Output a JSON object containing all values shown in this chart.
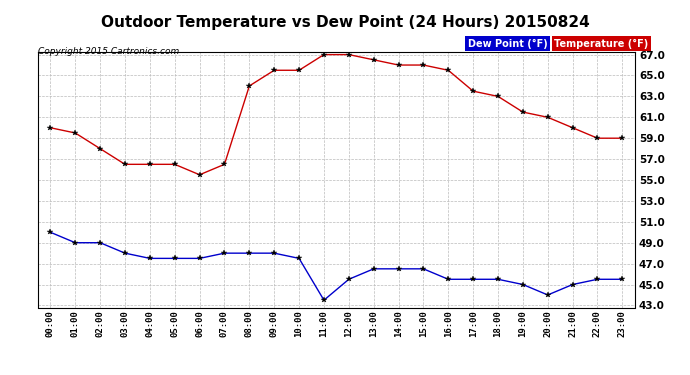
{
  "title": "Outdoor Temperature vs Dew Point (24 Hours) 20150824",
  "copyright": "Copyright 2015 Cartronics.com",
  "hours": [
    "00:00",
    "01:00",
    "02:00",
    "03:00",
    "04:00",
    "05:00",
    "06:00",
    "07:00",
    "08:00",
    "09:00",
    "10:00",
    "11:00",
    "12:00",
    "13:00",
    "14:00",
    "15:00",
    "16:00",
    "17:00",
    "18:00",
    "19:00",
    "20:00",
    "21:00",
    "22:00",
    "23:00"
  ],
  "temperature": [
    60.0,
    59.5,
    58.0,
    56.5,
    56.5,
    56.5,
    55.5,
    56.5,
    64.0,
    65.5,
    65.5,
    67.0,
    67.0,
    66.5,
    66.0,
    66.0,
    65.5,
    63.5,
    63.0,
    61.5,
    61.0,
    60.0,
    59.0,
    59.0
  ],
  "dew_point": [
    50.0,
    49.0,
    49.0,
    48.0,
    47.5,
    47.5,
    47.5,
    48.0,
    48.0,
    48.0,
    47.5,
    43.5,
    45.5,
    46.5,
    46.5,
    46.5,
    45.5,
    45.5,
    45.5,
    45.0,
    44.0,
    45.0,
    45.5,
    45.5
  ],
  "ylim": [
    43.0,
    67.0
  ],
  "yticks": [
    43.0,
    45.0,
    47.0,
    49.0,
    51.0,
    53.0,
    55.0,
    57.0,
    59.0,
    61.0,
    63.0,
    65.0,
    67.0
  ],
  "temp_color": "#cc0000",
  "dew_color": "#0000cc",
  "bg_color": "#ffffff",
  "plot_bg_color": "#ffffff",
  "grid_color": "#bbbbbb",
  "title_fontsize": 11,
  "legend_dew_bg": "#0000cc",
  "legend_temp_bg": "#cc0000",
  "legend_dew_label": "Dew Point (°F)",
  "legend_temp_label": "Temperature (°F)"
}
